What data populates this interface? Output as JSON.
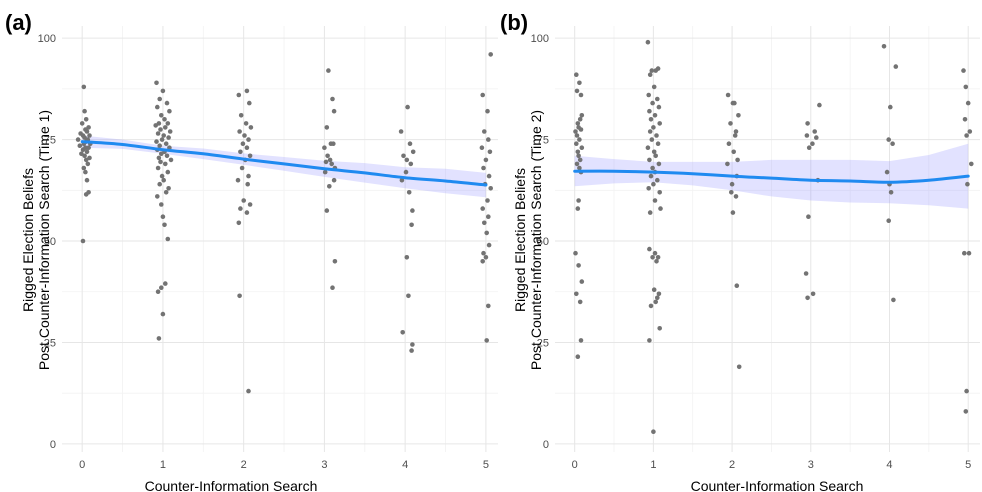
{
  "chart_data": [
    {
      "panel": "(a)",
      "type": "scatter",
      "title": "",
      "xlabel": "Counter-Information Search",
      "ylabel_lines": [
        "Rigged Election Beliefs",
        "Post Counter-Information Search (Time 1)"
      ],
      "xlim": [
        -0.25,
        5.15
      ],
      "ylim": [
        -2,
        103
      ],
      "xticks": [
        0,
        1,
        2,
        3,
        4,
        5
      ],
      "yticks": [
        0,
        25,
        50,
        75,
        100
      ],
      "grid": true,
      "point_color": "#737373",
      "line_color": "#1f8af0",
      "band_color": "#8c8cff",
      "points": [
        [
          0.02,
          88
        ],
        [
          0.03,
          82
        ],
        [
          0.05,
          80
        ],
        [
          0.0,
          79
        ],
        [
          0.08,
          78
        ],
        [
          0.04,
          77.5
        ],
        [
          0.06,
          77
        ],
        [
          -0.02,
          76.5
        ],
        [
          0.01,
          76
        ],
        [
          0.09,
          76
        ],
        [
          0.03,
          75.5
        ],
        [
          -0.05,
          75
        ],
        [
          0.07,
          75
        ],
        [
          0.05,
          74.5
        ],
        [
          0.02,
          74
        ],
        [
          0.1,
          74
        ],
        [
          -0.03,
          73.5
        ],
        [
          0.04,
          73
        ],
        [
          0.08,
          73
        ],
        [
          0.01,
          72.5
        ],
        [
          0.06,
          72
        ],
        [
          -0.01,
          71.5
        ],
        [
          0.03,
          71
        ],
        [
          0.09,
          70.5
        ],
        [
          0.05,
          70
        ],
        [
          0.07,
          69
        ],
        [
          0.02,
          68
        ],
        [
          0.04,
          67
        ],
        [
          0.06,
          65
        ],
        [
          0.08,
          62
        ],
        [
          0.05,
          61.5
        ],
        [
          0.01,
          50
        ],
        [
          0.92,
          89
        ],
        [
          1.0,
          87
        ],
        [
          0.96,
          85
        ],
        [
          1.05,
          84
        ],
        [
          0.93,
          83
        ],
        [
          1.08,
          82
        ],
        [
          0.98,
          81
        ],
        [
          1.02,
          80
        ],
        [
          0.95,
          79
        ],
        [
          1.06,
          79
        ],
        [
          0.91,
          78.5
        ],
        [
          1.03,
          78
        ],
        [
          0.97,
          77.5
        ],
        [
          1.09,
          77
        ],
        [
          0.94,
          76.5
        ],
        [
          1.01,
          76
        ],
        [
          1.07,
          75.5
        ],
        [
          0.99,
          75
        ],
        [
          0.92,
          74.5
        ],
        [
          1.04,
          74
        ],
        [
          0.96,
          73.5
        ],
        [
          1.08,
          73
        ],
        [
          0.93,
          72.5
        ],
        [
          1.02,
          72
        ],
        [
          0.98,
          71.5
        ],
        [
          1.05,
          71
        ],
        [
          0.95,
          70.5
        ],
        [
          1.1,
          70
        ],
        [
          0.97,
          69.5
        ],
        [
          1.03,
          69
        ],
        [
          0.94,
          68
        ],
        [
          1.06,
          67
        ],
        [
          0.99,
          66
        ],
        [
          1.01,
          65
        ],
        [
          0.96,
          64
        ],
        [
          1.07,
          63
        ],
        [
          1.04,
          62
        ],
        [
          0.93,
          61
        ],
        [
          0.98,
          59
        ],
        [
          1.0,
          56
        ],
        [
          1.02,
          54
        ],
        [
          1.06,
          50.5
        ],
        [
          1.03,
          39.5
        ],
        [
          0.98,
          38.5
        ],
        [
          0.94,
          37.5
        ],
        [
          1.0,
          32
        ],
        [
          0.95,
          26
        ],
        [
          1.94,
          86
        ],
        [
          2.04,
          87
        ],
        [
          2.07,
          84
        ],
        [
          1.97,
          81
        ],
        [
          2.03,
          79
        ],
        [
          2.09,
          78
        ],
        [
          1.95,
          77
        ],
        [
          2.01,
          76
        ],
        [
          2.06,
          75
        ],
        [
          1.99,
          74
        ],
        [
          2.04,
          73
        ],
        [
          1.96,
          72
        ],
        [
          2.08,
          71
        ],
        [
          2.02,
          70
        ],
        [
          1.98,
          68
        ],
        [
          2.06,
          66
        ],
        [
          1.93,
          65
        ],
        [
          2.05,
          64
        ],
        [
          2.0,
          60
        ],
        [
          1.96,
          58
        ],
        [
          2.08,
          59
        ],
        [
          2.04,
          57
        ],
        [
          1.94,
          54.5
        ],
        [
          1.95,
          36.5
        ],
        [
          2.06,
          13
        ],
        [
          3.05,
          92
        ],
        [
          3.1,
          85
        ],
        [
          3.12,
          82
        ],
        [
          3.03,
          78
        ],
        [
          3.08,
          74
        ],
        [
          3.11,
          74
        ],
        [
          3.0,
          73
        ],
        [
          3.04,
          71
        ],
        [
          3.07,
          70
        ],
        [
          3.02,
          69.5
        ],
        [
          3.09,
          69
        ],
        [
          3.13,
          68
        ],
        [
          3.01,
          67
        ],
        [
          3.12,
          65
        ],
        [
          3.06,
          63.5
        ],
        [
          3.03,
          57.5
        ],
        [
          3.13,
          45
        ],
        [
          3.1,
          38.5
        ],
        [
          4.03,
          83
        ],
        [
          3.95,
          77
        ],
        [
          4.06,
          74
        ],
        [
          4.1,
          72
        ],
        [
          3.98,
          71
        ],
        [
          4.02,
          70
        ],
        [
          4.07,
          69
        ],
        [
          4.01,
          67
        ],
        [
          3.96,
          65
        ],
        [
          4.05,
          62
        ],
        [
          4.09,
          57.5
        ],
        [
          4.08,
          54
        ],
        [
          4.02,
          46
        ],
        [
          4.04,
          36.5
        ],
        [
          4.09,
          24.5
        ],
        [
          4.08,
          23
        ],
        [
          3.97,
          27.5
        ],
        [
          4.96,
          86
        ],
        [
          5.02,
          82
        ],
        [
          5.06,
          96
        ],
        [
          4.98,
          77
        ],
        [
          5.03,
          75
        ],
        [
          4.95,
          73
        ],
        [
          5.05,
          72
        ],
        [
          5.0,
          70
        ],
        [
          4.97,
          68
        ],
        [
          5.04,
          66
        ],
        [
          4.99,
          64
        ],
        [
          5.06,
          63
        ],
        [
          5.02,
          60
        ],
        [
          4.96,
          58
        ],
        [
          5.03,
          56
        ],
        [
          4.98,
          54.5
        ],
        [
          5.01,
          52
        ],
        [
          5.04,
          49
        ],
        [
          4.97,
          47
        ],
        [
          5.0,
          46
        ],
        [
          4.96,
          45
        ],
        [
          5.03,
          34
        ],
        [
          5.01,
          25.5
        ]
      ],
      "smooth": {
        "x": [
          0,
          0.5,
          1,
          1.5,
          2,
          2.5,
          3,
          3.5,
          4,
          4.5,
          5
        ],
        "y": [
          74.5,
          73.8,
          72.5,
          71.5,
          70.2,
          69.0,
          67.8,
          66.8,
          65.6,
          64.8,
          63.8
        ],
        "lower": [
          73.0,
          72.7,
          71.5,
          70.2,
          68.8,
          67.3,
          65.8,
          64.4,
          63.0,
          61.8,
          60.8
        ],
        "upper": [
          76.0,
          75.0,
          73.5,
          72.8,
          71.6,
          70.7,
          69.8,
          69.2,
          68.2,
          67.8,
          66.8
        ]
      }
    },
    {
      "panel": "(b)",
      "type": "scatter",
      "title": "",
      "xlabel": "Counter-Information Search",
      "ylabel_lines": [
        "Rigged Election Beliefs",
        "Post Counter-Information Search (Time 2)"
      ],
      "xlim": [
        -0.25,
        5.15
      ],
      "ylim": [
        -2,
        103
      ],
      "xticks": [
        0,
        1,
        2,
        3,
        4,
        5
      ],
      "yticks": [
        0,
        25,
        50,
        75,
        100
      ],
      "grid": true,
      "point_color": "#737373",
      "line_color": "#1f8af0",
      "band_color": "#8c8cff",
      "points": [
        [
          0.02,
          91
        ],
        [
          0.06,
          89
        ],
        [
          0.03,
          87
        ],
        [
          0.08,
          86
        ],
        [
          0.09,
          81
        ],
        [
          0.07,
          80
        ],
        [
          0.04,
          79
        ],
        [
          0.05,
          78
        ],
        [
          0.01,
          77
        ],
        [
          0.08,
          77.5
        ],
        [
          0.03,
          76
        ],
        [
          0.06,
          75
        ],
        [
          0.02,
          74
        ],
        [
          0.09,
          73
        ],
        [
          0.04,
          72
        ],
        [
          0.05,
          71
        ],
        [
          0.07,
          70
        ],
        [
          0.03,
          69
        ],
        [
          0.06,
          68
        ],
        [
          0.08,
          67
        ],
        [
          0.05,
          60
        ],
        [
          0.04,
          58
        ],
        [
          0.01,
          47
        ],
        [
          0.05,
          44
        ],
        [
          0.09,
          40
        ],
        [
          0.02,
          37
        ],
        [
          0.07,
          35
        ],
        [
          0.08,
          25.5
        ],
        [
          0.04,
          21.5
        ],
        [
          0.93,
          99
        ],
        [
          0.98,
          92
        ],
        [
          1.03,
          92
        ],
        [
          1.06,
          92.5
        ],
        [
          0.96,
          91
        ],
        [
          1.01,
          88
        ],
        [
          0.94,
          86
        ],
        [
          1.05,
          85
        ],
        [
          0.99,
          84
        ],
        [
          1.07,
          83
        ],
        [
          0.95,
          82
        ],
        [
          1.02,
          81
        ],
        [
          0.97,
          80
        ],
        [
          1.08,
          79
        ],
        [
          1.0,
          78
        ],
        [
          0.96,
          77
        ],
        [
          1.04,
          76
        ],
        [
          0.98,
          75
        ],
        [
          1.06,
          74
        ],
        [
          0.93,
          73
        ],
        [
          1.01,
          72
        ],
        [
          1.03,
          71
        ],
        [
          0.95,
          70
        ],
        [
          1.07,
          69
        ],
        [
          0.99,
          68
        ],
        [
          1.02,
          67
        ],
        [
          0.97,
          66
        ],
        [
          1.05,
          65
        ],
        [
          1.0,
          64
        ],
        [
          0.94,
          63
        ],
        [
          1.08,
          62
        ],
        [
          1.02,
          60
        ],
        [
          0.96,
          57
        ],
        [
          1.09,
          58
        ],
        [
          0.95,
          48
        ],
        [
          1.02,
          47
        ],
        [
          1.06,
          46
        ],
        [
          1.04,
          45
        ],
        [
          0.99,
          46
        ],
        [
          1.01,
          38
        ],
        [
          1.07,
          37
        ],
        [
          1.05,
          36
        ],
        [
          1.03,
          35
        ],
        [
          0.97,
          34
        ],
        [
          1.08,
          28.5
        ],
        [
          0.95,
          25.5
        ],
        [
          1.0,
          3
        ],
        [
          1.95,
          86
        ],
        [
          2.01,
          84
        ],
        [
          2.03,
          84
        ],
        [
          2.08,
          81
        ],
        [
          1.98,
          79
        ],
        [
          2.05,
          77
        ],
        [
          2.04,
          76
        ],
        [
          1.96,
          74
        ],
        [
          2.02,
          72
        ],
        [
          2.07,
          70
        ],
        [
          1.94,
          69
        ],
        [
          2.06,
          66
        ],
        [
          2.0,
          64
        ],
        [
          1.99,
          62
        ],
        [
          2.05,
          61
        ],
        [
          2.01,
          57
        ],
        [
          2.06,
          39
        ],
        [
          2.09,
          19
        ],
        [
          2.96,
          79
        ],
        [
          3.05,
          77
        ],
        [
          2.95,
          76
        ],
        [
          3.07,
          75.5
        ],
        [
          3.02,
          74
        ],
        [
          2.98,
          73
        ],
        [
          3.09,
          65
        ],
        [
          2.97,
          56
        ],
        [
          2.94,
          42
        ],
        [
          2.96,
          36
        ],
        [
          3.03,
          37
        ],
        [
          3.11,
          83.5
        ],
        [
          3.93,
          98
        ],
        [
          4.08,
          93
        ],
        [
          4.01,
          83
        ],
        [
          3.99,
          75
        ],
        [
          4.04,
          74
        ],
        [
          3.97,
          67
        ],
        [
          4.0,
          64
        ],
        [
          4.02,
          62
        ],
        [
          3.99,
          55
        ],
        [
          4.05,
          35.5
        ],
        [
          4.94,
          92
        ],
        [
          4.97,
          88
        ],
        [
          5.0,
          84
        ],
        [
          4.96,
          80
        ],
        [
          5.02,
          77
        ],
        [
          4.98,
          76
        ],
        [
          5.04,
          69
        ],
        [
          4.99,
          64
        ],
        [
          4.95,
          47
        ],
        [
          5.01,
          47
        ],
        [
          4.98,
          13
        ],
        [
          4.97,
          8
        ]
      ],
      "smooth": {
        "x": [
          0,
          0.5,
          1,
          1.5,
          2,
          2.5,
          3,
          3.5,
          4,
          4.5,
          5
        ],
        "y": [
          67.2,
          67.2,
          67.0,
          66.6,
          66.0,
          65.5,
          65.0,
          64.8,
          64.5,
          65.0,
          66.0
        ],
        "lower": [
          63.5,
          64.2,
          64.5,
          63.7,
          62.5,
          61.0,
          60.0,
          59.5,
          59.3,
          58.8,
          58.0
        ],
        "upper": [
          71.0,
          70.2,
          69.5,
          69.5,
          69.5,
          70.0,
          70.0,
          70.0,
          69.7,
          71.2,
          74.0
        ]
      }
    }
  ]
}
